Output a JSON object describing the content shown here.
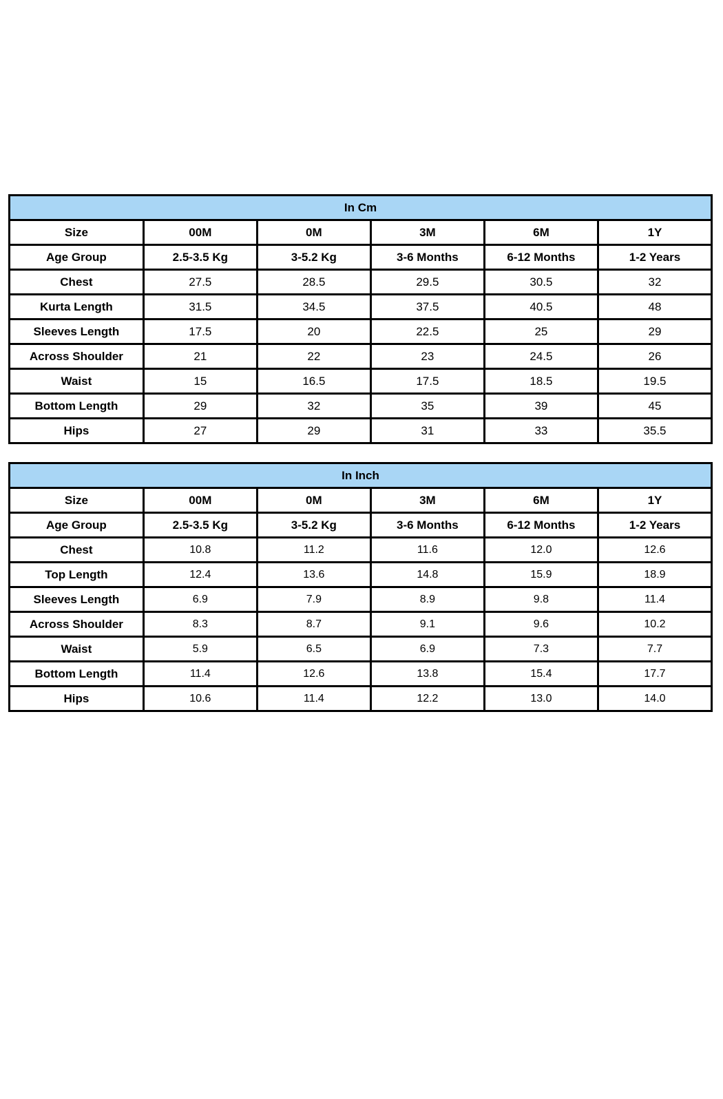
{
  "page": {
    "background": "#ffffff"
  },
  "colors": {
    "header_fill": "#a9d6f5",
    "border": "#000000",
    "text": "#000000"
  },
  "tables": [
    {
      "title": "In Cm",
      "size_row": {
        "label": "Size",
        "values": [
          "00M",
          "0M",
          "3M",
          "6M",
          "1Y"
        ]
      },
      "age_row": {
        "label": "Age Group",
        "values": [
          "2.5-3.5 Kg",
          "3-5.2 Kg",
          "3-6 Months",
          "6-12 Months",
          "1-2 Years"
        ]
      },
      "rows": [
        {
          "label": "Chest",
          "values": [
            "27.5",
            "28.5",
            "29.5",
            "30.5",
            "32"
          ]
        },
        {
          "label": "Kurta Length",
          "values": [
            "31.5",
            "34.5",
            "37.5",
            "40.5",
            "48"
          ]
        },
        {
          "label": "Sleeves Length",
          "values": [
            "17.5",
            "20",
            "22.5",
            "25",
            "29"
          ]
        },
        {
          "label": "Across Shoulder",
          "values": [
            "21",
            "22",
            "23",
            "24.5",
            "26"
          ]
        },
        {
          "label": "Waist",
          "values": [
            "15",
            "16.5",
            "17.5",
            "18.5",
            "19.5"
          ]
        },
        {
          "label": "Bottom Length",
          "values": [
            "29",
            "32",
            "35",
            "39",
            "45"
          ]
        },
        {
          "label": "Hips",
          "values": [
            "27",
            "29",
            "31",
            "33",
            "35.5"
          ]
        }
      ]
    },
    {
      "title": "In Inch",
      "size_row": {
        "label": "Size",
        "values": [
          "00M",
          "0M",
          "3M",
          "6M",
          "1Y"
        ]
      },
      "age_row": {
        "label": "Age Group",
        "values": [
          "2.5-3.5 Kg",
          "3-5.2 Kg",
          "3-6 Months",
          "6-12 Months",
          "1-2 Years"
        ]
      },
      "rows": [
        {
          "label": "Chest",
          "values": [
            "10.8",
            "11.2",
            "11.6",
            "12.0",
            "12.6"
          ]
        },
        {
          "label": "Top Length",
          "values": [
            "12.4",
            "13.6",
            "14.8",
            "15.9",
            "18.9"
          ]
        },
        {
          "label": "Sleeves Length",
          "values": [
            "6.9",
            "7.9",
            "8.9",
            "9.8",
            "11.4"
          ]
        },
        {
          "label": "Across Shoulder",
          "values": [
            "8.3",
            "8.7",
            "9.1",
            "9.6",
            "10.2"
          ]
        },
        {
          "label": "Waist",
          "values": [
            "5.9",
            "6.5",
            "6.9",
            "7.3",
            "7.7"
          ]
        },
        {
          "label": "Bottom Length",
          "values": [
            "11.4",
            "12.6",
            "13.8",
            "15.4",
            "17.7"
          ]
        },
        {
          "label": "Hips",
          "values": [
            "10.6",
            "11.4",
            "12.2",
            "13.0",
            "14.0"
          ]
        }
      ]
    }
  ]
}
